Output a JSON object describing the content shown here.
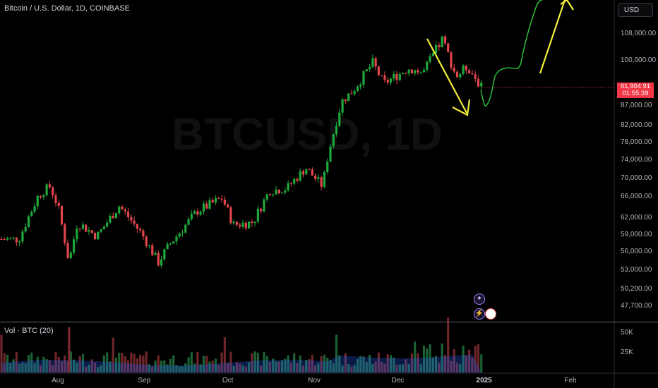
{
  "header": {
    "title": "Bitcoin / U.S. Dollar, 1D, COINBASE",
    "currency_button": "USD"
  },
  "watermark": "BTCUSD, 1D",
  "volume_label": "Vol · BTC (20)",
  "last_price": {
    "value": "91,904.91",
    "countdown": "01:55:39"
  },
  "colors": {
    "up": "#26a69a",
    "down": "#ef5350",
    "bull_body": "#1fa83a",
    "bear_body": "#e0454b",
    "forecast_line": "#2ecc40",
    "arrow": "#f2ee3a",
    "badge": "#f23645"
  },
  "chart_data": {
    "type": "candlestick",
    "y_axis_ticks": [
      108000,
      100000,
      87000,
      82000,
      78000,
      74000,
      70000,
      66000,
      62000,
      59000,
      56000,
      53000,
      50200,
      47700
    ],
    "y_axis_labels": [
      "108,000.00",
      "100,000.00",
      "87,000.00",
      "82,000.00",
      "78,000.00",
      "74,000.00",
      "70,000.00",
      "66,000.00",
      "62,000.00",
      "59,000.00",
      "56,000.00",
      "53,000.00",
      "50,200.00",
      "47,700.00"
    ],
    "x_axis_labels": [
      "Aug",
      "Sep",
      "Oct",
      "Nov",
      "Dec",
      "2025",
      "Feb"
    ],
    "volume_axis_labels": [
      "50K",
      "25K"
    ],
    "close_series": [
      {
        "date": "2024-07-18",
        "close": 58000
      },
      {
        "date": "2024-07-25",
        "close": 66000
      },
      {
        "date": "2024-07-29",
        "close": 68000
      },
      {
        "date": "2024-08-01",
        "close": 64000
      },
      {
        "date": "2024-08-05",
        "close": 54000
      },
      {
        "date": "2024-08-08",
        "close": 61000
      },
      {
        "date": "2024-08-15",
        "close": 58500
      },
      {
        "date": "2024-08-23",
        "close": 64000
      },
      {
        "date": "2024-08-31",
        "close": 59000
      },
      {
        "date": "2024-09-06",
        "close": 54000
      },
      {
        "date": "2024-09-10",
        "close": 57000
      },
      {
        "date": "2024-09-20",
        "close": 63000
      },
      {
        "date": "2024-09-29",
        "close": 65500
      },
      {
        "date": "2024-10-03",
        "close": 60500
      },
      {
        "date": "2024-10-10",
        "close": 61000
      },
      {
        "date": "2024-10-16",
        "close": 67000
      },
      {
        "date": "2024-10-22",
        "close": 67500
      },
      {
        "date": "2024-10-29",
        "close": 72000
      },
      {
        "date": "2024-11-04",
        "close": 68000
      },
      {
        "date": "2024-11-06",
        "close": 75000
      },
      {
        "date": "2024-11-11",
        "close": 88000
      },
      {
        "date": "2024-11-15",
        "close": 91000
      },
      {
        "date": "2024-11-22",
        "close": 99000
      },
      {
        "date": "2024-11-26",
        "close": 93000
      },
      {
        "date": "2024-12-05",
        "close": 97500
      },
      {
        "date": "2024-12-10",
        "close": 96000
      },
      {
        "date": "2024-12-17",
        "close": 106000
      },
      {
        "date": "2024-12-22",
        "close": 95000
      },
      {
        "date": "2024-12-26",
        "close": 98000
      },
      {
        "date": "2024-12-31",
        "close": 92000
      }
    ],
    "volume_axis_labels_note": "volume bars rendered in lower pane",
    "annotations": [
      "down arrow",
      "forecast path",
      "up arrow"
    ]
  }
}
